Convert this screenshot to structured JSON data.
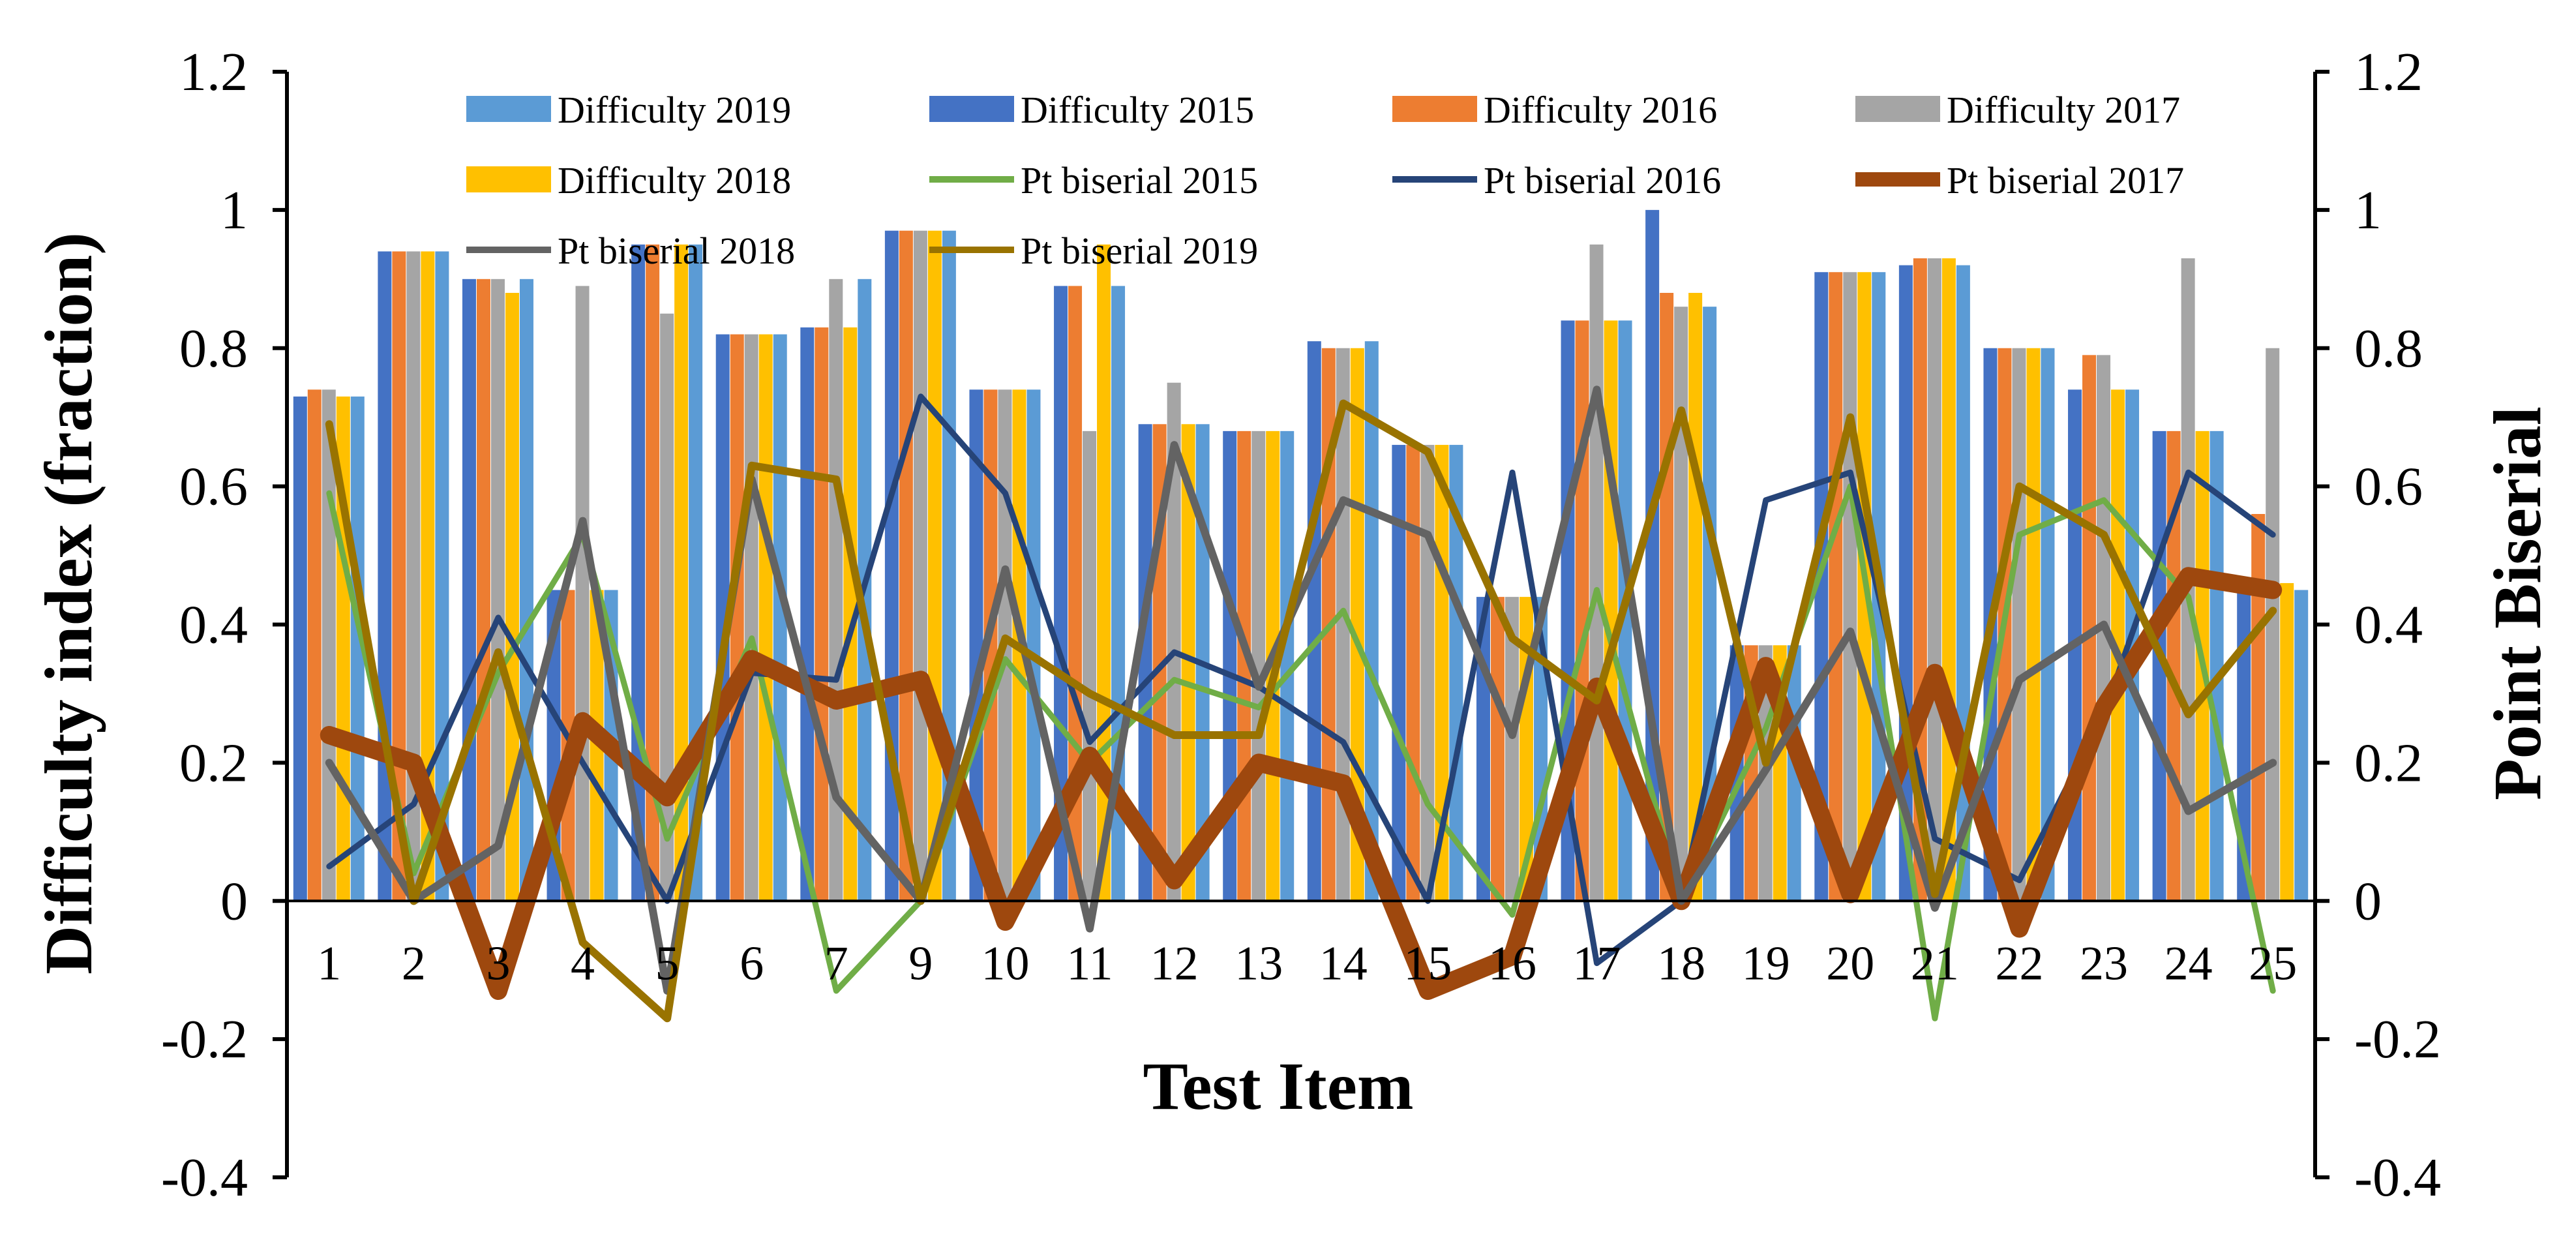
{
  "chart_data": {
    "type": "bar+line",
    "title": "",
    "xlabel": "Test Item",
    "ylabel": "Difficulty index (fraction)",
    "y2label": "Point Biserial",
    "ylim": [
      -0.4,
      1.2
    ],
    "y2lim": [
      -0.4,
      1.2
    ],
    "yticks": [
      "1.2",
      "1",
      "0.8",
      "0.6",
      "0.4",
      "0.2",
      "0",
      "-0.2",
      "-0.4"
    ],
    "y2ticks": [
      "1.2",
      "1",
      "0.8",
      "0.6",
      "0.4",
      "0.2",
      "0",
      "-0.2",
      "-0.4"
    ],
    "categories": [
      "1",
      "2",
      "3",
      "4",
      "5",
      "6",
      "7",
      "9",
      "10",
      "11",
      "12",
      "13",
      "14",
      "15",
      "16",
      "17",
      "18",
      "19",
      "20",
      "21",
      "22",
      "23",
      "24",
      "25"
    ],
    "bar_series": [
      {
        "name": "Difficulty 2015",
        "color": "#4472C4",
        "values": [
          0.73,
          0.94,
          0.9,
          0.45,
          0.95,
          0.82,
          0.83,
          0.97,
          0.74,
          0.89,
          0.69,
          0.68,
          0.81,
          0.66,
          0.44,
          0.84,
          1.0,
          0.37,
          0.91,
          0.92,
          0.8,
          0.74,
          0.68,
          0.45
        ]
      },
      {
        "name": "Difficulty 2016",
        "color": "#ED7D31",
        "values": [
          0.74,
          0.94,
          0.9,
          0.45,
          0.95,
          0.82,
          0.83,
          0.97,
          0.74,
          0.89,
          0.69,
          0.68,
          0.8,
          0.66,
          0.44,
          0.84,
          0.88,
          0.37,
          0.91,
          0.93,
          0.8,
          0.79,
          0.68,
          0.56
        ]
      },
      {
        "name": "Difficulty 2017",
        "color": "#A5A5A5",
        "values": [
          0.74,
          0.94,
          0.9,
          0.89,
          0.85,
          0.82,
          0.9,
          0.97,
          0.74,
          0.68,
          0.75,
          0.68,
          0.8,
          0.66,
          0.44,
          0.95,
          0.86,
          0.37,
          0.91,
          0.93,
          0.8,
          0.79,
          0.93,
          0.8
        ]
      },
      {
        "name": "Difficulty 2018",
        "color": "#FFC000",
        "values": [
          0.73,
          0.94,
          0.88,
          0.45,
          0.95,
          0.82,
          0.83,
          0.97,
          0.74,
          0.95,
          0.69,
          0.68,
          0.8,
          0.66,
          0.44,
          0.84,
          0.88,
          0.37,
          0.91,
          0.93,
          0.8,
          0.74,
          0.68,
          0.46
        ]
      },
      {
        "name": "Difficulty 2019",
        "color": "#5B9BD5",
        "values": [
          0.73,
          0.94,
          0.9,
          0.45,
          0.95,
          0.82,
          0.9,
          0.97,
          0.74,
          0.89,
          0.69,
          0.68,
          0.81,
          0.66,
          0.44,
          0.84,
          0.86,
          0.37,
          0.91,
          0.92,
          0.8,
          0.74,
          0.68,
          0.45
        ]
      }
    ],
    "line_series": [
      {
        "name": "Pt biserial 2015",
        "color": "#70AD47",
        "width": 9,
        "values": [
          0.59,
          0.04,
          0.33,
          0.53,
          0.09,
          0.38,
          -0.13,
          0.0,
          0.35,
          0.2,
          0.32,
          0.28,
          0.42,
          0.14,
          -0.02,
          0.45,
          0.0,
          0.25,
          0.6,
          -0.17,
          0.53,
          0.58,
          0.44,
          -0.13
        ]
      },
      {
        "name": "Pt biserial 2016",
        "color": "#264478",
        "width": 9,
        "values": [
          0.05,
          0.14,
          0.41,
          0.2,
          0.0,
          0.33,
          0.32,
          0.73,
          0.59,
          0.23,
          0.36,
          0.31,
          0.23,
          0.0,
          0.62,
          -0.09,
          0.0,
          0.58,
          0.62,
          0.09,
          0.03,
          0.27,
          0.62,
          0.53
        ]
      },
      {
        "name": "Pt biserial 2017",
        "color": "#9E480E",
        "width": 28,
        "values": [
          0.24,
          0.2,
          -0.13,
          0.26,
          0.15,
          0.35,
          0.29,
          0.32,
          -0.03,
          0.21,
          0.03,
          0.2,
          0.17,
          -0.13,
          -0.08,
          0.31,
          0.0,
          0.34,
          0.01,
          0.33,
          -0.04,
          0.28,
          0.47,
          0.45
        ]
      },
      {
        "name": "Pt biserial 2018",
        "color": "#636363",
        "width": 12,
        "values": [
          0.2,
          0.0,
          0.08,
          0.55,
          -0.13,
          0.61,
          0.15,
          0.0,
          0.48,
          -0.04,
          0.66,
          0.31,
          0.58,
          0.53,
          0.24,
          0.74,
          0.0,
          0.19,
          0.39,
          -0.01,
          0.32,
          0.4,
          0.13,
          0.2
        ]
      },
      {
        "name": "Pt biserial 2019",
        "color": "#997300",
        "width": 12,
        "values": [
          0.69,
          0.0,
          0.36,
          -0.06,
          -0.17,
          0.63,
          0.61,
          0.0,
          0.38,
          0.3,
          0.24,
          0.24,
          0.72,
          0.65,
          0.38,
          0.29,
          0.71,
          0.2,
          0.7,
          0.01,
          0.6,
          0.53,
          0.27,
          0.42
        ]
      }
    ],
    "legend": {
      "position": "top",
      "items": [
        {
          "label": "Difficulty 2019",
          "color": "#5B9BD5",
          "kind": "bar"
        },
        {
          "label": "Difficulty 2015",
          "color": "#4472C4",
          "kind": "bar"
        },
        {
          "label": "Difficulty 2016",
          "color": "#ED7D31",
          "kind": "bar"
        },
        {
          "label": "Difficulty 2017",
          "color": "#A5A5A5",
          "kind": "bar"
        },
        {
          "label": "Difficulty 2018",
          "color": "#FFC000",
          "kind": "bar"
        },
        {
          "label": "Pt biserial 2015",
          "color": "#70AD47",
          "kind": "line"
        },
        {
          "label": "Pt biserial 2016",
          "color": "#264478",
          "kind": "line"
        },
        {
          "label": "Pt biserial 2017",
          "color": "#9E480E",
          "kind": "line"
        },
        {
          "label": "Pt biserial 2018",
          "color": "#636363",
          "kind": "line"
        },
        {
          "label": "Pt biserial 2019",
          "color": "#997300",
          "kind": "line"
        }
      ]
    },
    "grid": false
  }
}
